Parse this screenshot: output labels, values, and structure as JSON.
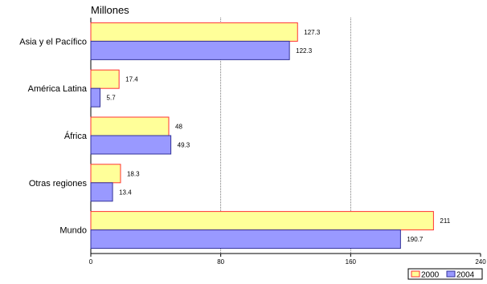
{
  "chart_data": {
    "type": "bar",
    "orientation": "horizontal",
    "header_text": "Millones",
    "categories": [
      "Asia y el Pacífico",
      "América Latina",
      "África",
      "Otras regiones",
      "Mundo"
    ],
    "series": [
      {
        "name": "2000",
        "color": "#ffff99",
        "values": [
          127.3,
          17.4,
          48,
          18.3,
          211
        ]
      },
      {
        "name": "2004",
        "color": "#9999ff",
        "values": [
          122.3,
          5.7,
          49.3,
          13.4,
          190.7
        ]
      }
    ],
    "xlim": [
      0,
      240
    ],
    "x_ticks": [
      "0",
      "80",
      "160",
      "240"
    ],
    "grid": "vertical dashed",
    "legend_position": "bottom-right"
  }
}
